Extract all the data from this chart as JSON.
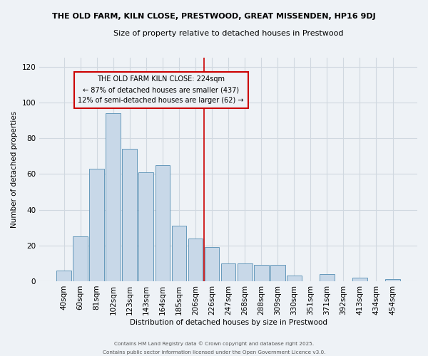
{
  "title": "THE OLD FARM, KILN CLOSE, PRESTWOOD, GREAT MISSENDEN, HP16 9DJ",
  "subtitle": "Size of property relative to detached houses in Prestwood",
  "xlabel": "Distribution of detached houses by size in Prestwood",
  "ylabel": "Number of detached properties",
  "categories": [
    "40sqm",
    "60sqm",
    "81sqm",
    "102sqm",
    "123sqm",
    "143sqm",
    "164sqm",
    "185sqm",
    "206sqm",
    "226sqm",
    "247sqm",
    "268sqm",
    "288sqm",
    "309sqm",
    "330sqm",
    "351sqm",
    "371sqm",
    "392sqm",
    "413sqm",
    "434sqm",
    "454sqm"
  ],
  "values": [
    6,
    25,
    63,
    94,
    74,
    61,
    65,
    31,
    24,
    19,
    10,
    10,
    9,
    9,
    3,
    0,
    4,
    0,
    2,
    0,
    1
  ],
  "bar_color": "#c8d8e8",
  "bar_edge_color": "#6699bb",
  "grid_color": "#d0d8e0",
  "background_color": "#eef2f6",
  "vline_x": 8.5,
  "vline_color": "#cc0000",
  "annotation_text": "THE OLD FARM KILN CLOSE: 224sqm\n← 87% of detached houses are smaller (437)\n12% of semi-detached houses are larger (62) →",
  "annotation_box_edgecolor": "#cc0000",
  "footer1": "Contains HM Land Registry data © Crown copyright and database right 2025.",
  "footer2": "Contains public sector information licensed under the Open Government Licence v3.0.",
  "ylim": [
    0,
    125
  ],
  "yticks": [
    0,
    20,
    40,
    60,
    80,
    100,
    120
  ]
}
